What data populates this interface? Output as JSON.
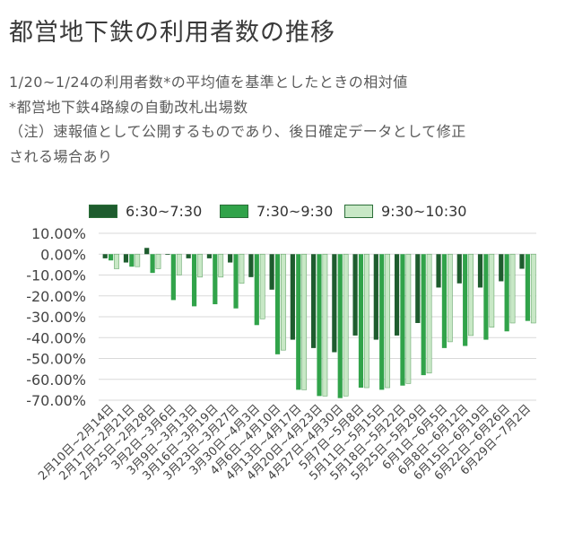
{
  "title": "都営地下鉄の利用者数の推移",
  "subtitle": [
    "1/20~1/24の利用者数*の平均値を基準としたときの相対値",
    "*都営地下鉄4路線の自動改札出場数",
    "（注）速報値として公開するものであり、後日確定データとして修正",
    "される場合あり"
  ],
  "colors": {
    "s1": "#1e5c2e",
    "s2": "#31a34a",
    "s3": "#c8e8c6",
    "grid": "#d9d9d9",
    "axis": "#555555"
  },
  "chart_data": {
    "type": "bar",
    "categories": [
      "2月10日~2月14日",
      "2月17日~2月21日",
      "2月25日~2月28日",
      "3月2日~3月6日",
      "3月9日~3月13日",
      "3月16日~3月19日",
      "3月23日~3月27日",
      "3月30日~4月3日",
      "4月6日~4月10日",
      "4月13日~4月17日",
      "4月20日~4月23日",
      "4月27日~4月30日",
      "5月7日~5月8日",
      "5月11日~5月15日",
      "5月18日~5月22日",
      "5月25日~5月29日",
      "6月1日~6月5日",
      "6月8日~6月12日",
      "6月15日~6月19日",
      "6月22日~6月26日",
      "6月29日~7月2日"
    ],
    "series": [
      {
        "name": "6:30~7:30",
        "values": [
          -2,
          -4,
          3,
          0,
          -2,
          -2,
          -4,
          -11,
          -17,
          -41,
          -45,
          -47,
          -39,
          -41,
          -39,
          -33,
          -16,
          -14,
          -16,
          -13,
          -7
        ]
      },
      {
        "name": "7:30~9:30",
        "values": [
          -3,
          -6,
          -9,
          -22,
          -25,
          -24,
          -26,
          -34,
          -48,
          -65,
          -68,
          -69,
          -64,
          -65,
          -63,
          -58,
          -45,
          -44,
          -41,
          -37,
          -32
        ]
      },
      {
        "name": "9:30~10:30",
        "values": [
          -7,
          -6,
          -7,
          -10,
          -11,
          -11,
          -14,
          -31,
          -46,
          -65,
          -68,
          -68,
          -64,
          -64,
          -62,
          -57,
          -42,
          -39,
          -35,
          -33,
          -33
        ]
      }
    ],
    "yticks": [
      "10.00%",
      "0.00%",
      "-10.00%",
      "-20.00%",
      "-30.00%",
      "-40.00%",
      "-50.00%",
      "-60.00%",
      "-70.00%"
    ],
    "ylim": [
      -70,
      10
    ],
    "legend_position": "top",
    "grid": true
  }
}
